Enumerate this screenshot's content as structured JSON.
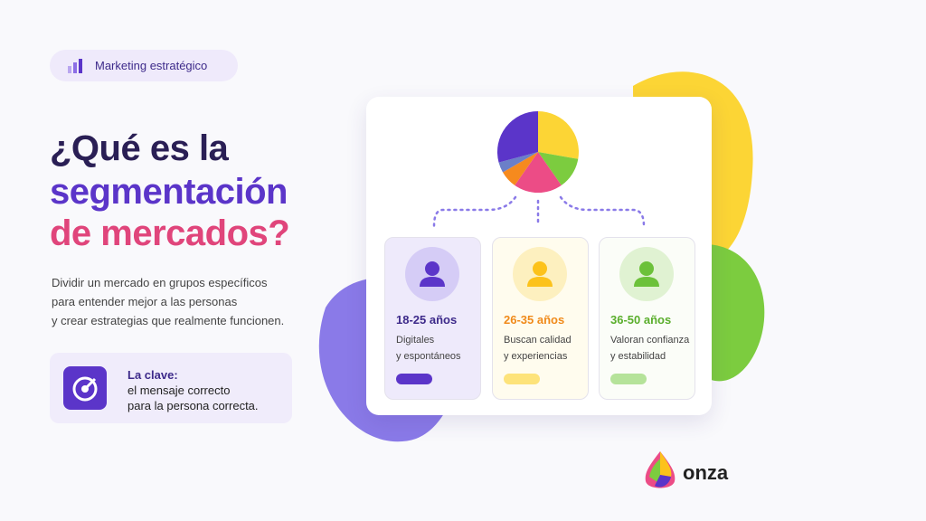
{
  "badge": "Marketing estratégico",
  "title": {
    "line1": "¿Qué es la",
    "line2": "segmentación",
    "line3": "de mercados?"
  },
  "description": [
    "Dividir un mercado en grupos específicos",
    "para entender mejor a las personas",
    "y crear estrategias que realmente funcionen."
  ],
  "key": {
    "label": "La clave:",
    "lines": [
      "el mensaje correcto",
      "para la persona correcta."
    ]
  },
  "cards": [
    {
      "age": "18-25 años",
      "lines": [
        "Digitales",
        "y espontáneos"
      ]
    },
    {
      "age": "26-35 años",
      "lines": [
        "Buscan calidad",
        "y experiencias"
      ]
    },
    {
      "age": "36-50 años",
      "lines": [
        "Valoran confianza",
        "y estabilidad"
      ]
    }
  ],
  "logo": "onza"
}
